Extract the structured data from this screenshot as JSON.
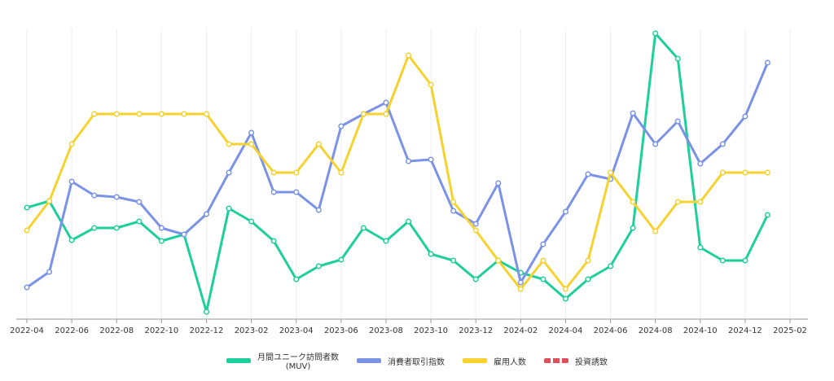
{
  "chart_data": {
    "type": "line",
    "x": [
      "2022-04",
      "2022-05",
      "2022-06",
      "2022-07",
      "2022-08",
      "2022-09",
      "2022-10",
      "2022-11",
      "2022-12",
      "2023-01",
      "2023-02",
      "2023-03",
      "2023-04",
      "2023-05",
      "2023-06",
      "2023-07",
      "2023-08",
      "2023-09",
      "2023-10",
      "2023-11",
      "2023-12",
      "2024-01",
      "2024-02",
      "2024-03",
      "2024-04",
      "2024-05",
      "2024-06",
      "2024-07",
      "2024-08",
      "2024-09",
      "2024-10",
      "2024-11",
      "2024-12",
      "2025-01"
    ],
    "xticks": [
      "2022-04",
      "2022-06",
      "2022-08",
      "2022-10",
      "2022-12",
      "2023-02",
      "2023-04",
      "2023-06",
      "2023-08",
      "2023-10",
      "2023-12",
      "2024-02",
      "2024-04",
      "2024-06",
      "2024-08",
      "2024-10",
      "2024-12",
      "2025-02"
    ],
    "ylim": [
      0,
      357
    ],
    "grid": true,
    "series": [
      {
        "name": "月間ユニーク訪問者数\n(MUV)",
        "color": "#1fcf9b",
        "values": [
          137,
          145,
          97,
          112,
          112,
          120,
          96,
          104,
          9,
          136,
          120,
          96,
          49,
          65,
          73,
          112,
          96,
          120,
          80,
          72,
          49,
          72,
          57,
          49,
          25,
          49,
          65,
          112,
          351,
          320,
          88,
          72,
          72,
          128
        ]
      },
      {
        "name": "消費者取引指数",
        "color": "#7b93e6",
        "values": [
          39,
          58,
          169,
          152,
          150,
          144,
          112,
          104,
          129,
          180,
          229,
          156,
          156,
          134,
          237,
          252,
          266,
          194,
          196,
          133,
          117,
          167,
          45,
          92,
          132,
          178,
          172,
          253,
          215,
          243,
          191,
          215,
          249,
          315
        ]
      },
      {
        "name": "雇用人数",
        "color": "#f5d22e",
        "values": [
          109,
          145,
          215,
          252,
          252,
          252,
          252,
          252,
          252,
          215,
          215,
          180,
          180,
          215,
          180,
          252,
          252,
          324,
          288,
          144,
          109,
          72,
          37,
          72,
          37,
          72,
          180,
          144,
          108,
          144,
          144,
          180,
          180,
          180
        ]
      },
      {
        "name": "投資誘致",
        "color": "#e0505a",
        "dashed": true,
        "values": [
          null,
          null,
          null,
          null,
          null,
          null,
          null,
          null,
          null,
          null,
          null,
          null,
          null,
          null,
          null,
          null,
          null,
          null,
          null,
          null,
          null,
          null,
          null,
          null,
          null,
          null,
          null,
          null,
          null,
          null,
          null,
          null,
          null,
          null
        ]
      }
    ]
  }
}
